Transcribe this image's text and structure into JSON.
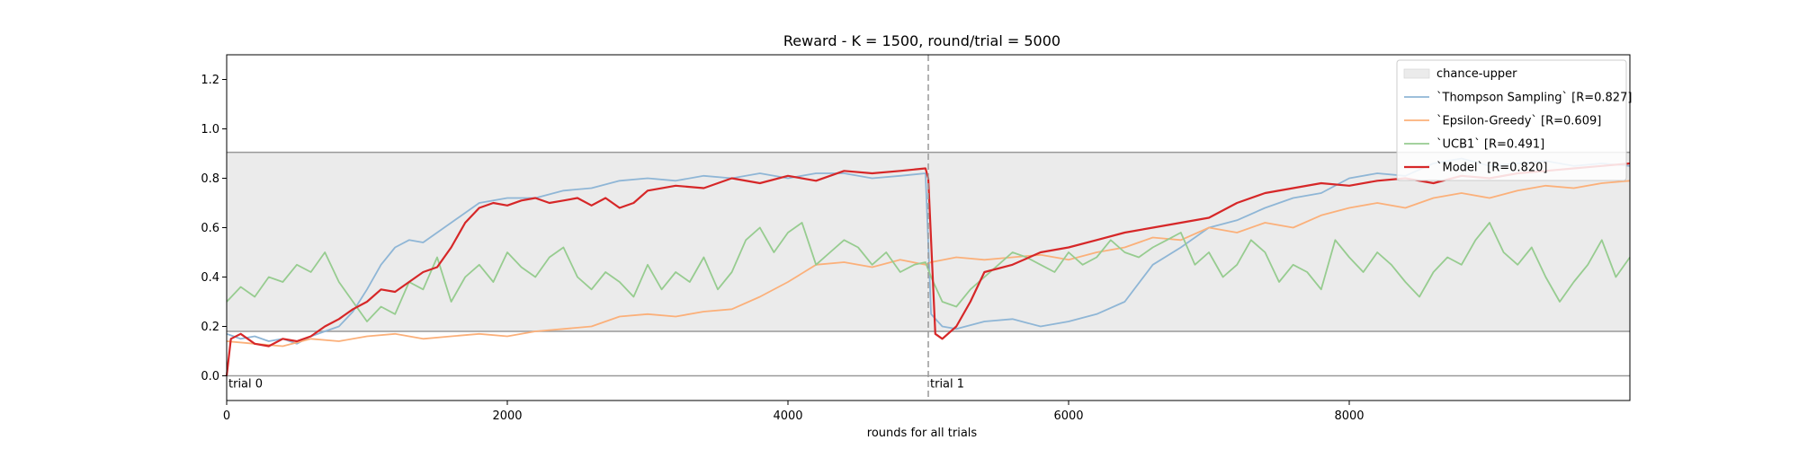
{
  "chart_data": {
    "type": "line",
    "title": "Reward - K = 1500, round/trial = 5000",
    "xlabel": "rounds for all trials",
    "ylabel": "",
    "xlim": [
      0,
      10000
    ],
    "ylim": [
      -0.1,
      1.3
    ],
    "xticks": [
      0,
      2000,
      4000,
      6000,
      8000
    ],
    "yticks": [
      0.0,
      0.2,
      0.4,
      0.6,
      0.8,
      1.0,
      1.2
    ],
    "grid": false,
    "legend_position": "upper right",
    "band": {
      "name": "chance-upper",
      "lower": 0.18,
      "upper": 0.905,
      "color": "#ebebeb"
    },
    "hlines": [
      0.905,
      0.18,
      0.0
    ],
    "trial_boundaries": [
      {
        "x": 0,
        "label": "trial 0"
      },
      {
        "x": 5000,
        "label": "trial 1"
      }
    ],
    "series": [
      {
        "name": "`Thompson Sampling` [R=0.827]",
        "color": "#8fb6d6",
        "x": [
          0,
          100,
          200,
          300,
          400,
          500,
          600,
          700,
          800,
          900,
          1000,
          1100,
          1200,
          1300,
          1400,
          1500,
          1600,
          1700,
          1800,
          2000,
          2200,
          2400,
          2600,
          2800,
          3000,
          3200,
          3400,
          3600,
          3800,
          4000,
          4200,
          4400,
          4600,
          4800,
          4980,
          5020,
          5100,
          5200,
          5400,
          5600,
          5800,
          6000,
          6200,
          6400,
          6600,
          6800,
          7000,
          7200,
          7400,
          7600,
          7800,
          8000,
          8200,
          8400,
          8600,
          8800,
          9000,
          9200,
          9400,
          9600,
          9800,
          10000
        ],
        "values": [
          0.17,
          0.15,
          0.16,
          0.14,
          0.15,
          0.13,
          0.16,
          0.18,
          0.2,
          0.26,
          0.35,
          0.45,
          0.52,
          0.55,
          0.54,
          0.58,
          0.62,
          0.66,
          0.7,
          0.72,
          0.72,
          0.75,
          0.76,
          0.79,
          0.8,
          0.79,
          0.81,
          0.8,
          0.82,
          0.8,
          0.82,
          0.82,
          0.8,
          0.81,
          0.82,
          0.25,
          0.2,
          0.19,
          0.22,
          0.23,
          0.2,
          0.22,
          0.25,
          0.3,
          0.45,
          0.52,
          0.6,
          0.63,
          0.68,
          0.72,
          0.74,
          0.8,
          0.82,
          0.81,
          0.86,
          0.88,
          0.85,
          0.86,
          0.87,
          0.85,
          0.86,
          0.85
        ]
      },
      {
        "name": "`Epsilon-Greedy` [R=0.609]",
        "color": "#fbb07a",
        "x": [
          0,
          200,
          400,
          600,
          800,
          1000,
          1200,
          1400,
          1600,
          1800,
          2000,
          2200,
          2400,
          2600,
          2800,
          3000,
          3200,
          3400,
          3600,
          3800,
          4000,
          4200,
          4400,
          4600,
          4800,
          4980,
          5020,
          5200,
          5400,
          5600,
          5800,
          6000,
          6200,
          6400,
          6600,
          6800,
          7000,
          7200,
          7400,
          7600,
          7800,
          8000,
          8200,
          8400,
          8600,
          8800,
          9000,
          9200,
          9400,
          9600,
          9800,
          10000
        ],
        "values": [
          0.14,
          0.13,
          0.12,
          0.15,
          0.14,
          0.16,
          0.17,
          0.15,
          0.16,
          0.17,
          0.16,
          0.18,
          0.19,
          0.2,
          0.24,
          0.25,
          0.24,
          0.26,
          0.27,
          0.32,
          0.38,
          0.45,
          0.46,
          0.44,
          0.47,
          0.45,
          0.46,
          0.48,
          0.47,
          0.48,
          0.49,
          0.47,
          0.5,
          0.52,
          0.56,
          0.55,
          0.6,
          0.58,
          0.62,
          0.6,
          0.65,
          0.68,
          0.7,
          0.68,
          0.72,
          0.74,
          0.72,
          0.75,
          0.77,
          0.76,
          0.78,
          0.79
        ]
      },
      {
        "name": "`UCB1` [R=0.491]",
        "color": "#97cc90",
        "x": [
          0,
          100,
          200,
          300,
          400,
          500,
          600,
          700,
          800,
          900,
          1000,
          1100,
          1200,
          1300,
          1400,
          1500,
          1600,
          1700,
          1800,
          1900,
          2000,
          2100,
          2200,
          2300,
          2400,
          2500,
          2600,
          2700,
          2800,
          2900,
          3000,
          3100,
          3200,
          3300,
          3400,
          3500,
          3600,
          3700,
          3800,
          3900,
          4000,
          4100,
          4200,
          4300,
          4400,
          4500,
          4600,
          4700,
          4800,
          4900,
          4980,
          5020,
          5100,
          5200,
          5300,
          5400,
          5500,
          5600,
          5700,
          5800,
          5900,
          6000,
          6100,
          6200,
          6300,
          6400,
          6500,
          6600,
          6700,
          6800,
          6900,
          7000,
          7100,
          7200,
          7300,
          7400,
          7500,
          7600,
          7700,
          7800,
          7900,
          8000,
          8100,
          8200,
          8300,
          8400,
          8500,
          8600,
          8700,
          8800,
          8900,
          9000,
          9100,
          9200,
          9300,
          9400,
          9500,
          9600,
          9700,
          9800,
          9900,
          10000
        ],
        "values": [
          0.3,
          0.36,
          0.32,
          0.4,
          0.38,
          0.45,
          0.42,
          0.5,
          0.38,
          0.3,
          0.22,
          0.28,
          0.25,
          0.38,
          0.35,
          0.48,
          0.3,
          0.4,
          0.45,
          0.38,
          0.5,
          0.44,
          0.4,
          0.48,
          0.52,
          0.4,
          0.35,
          0.42,
          0.38,
          0.32,
          0.45,
          0.35,
          0.42,
          0.38,
          0.48,
          0.35,
          0.42,
          0.55,
          0.6,
          0.5,
          0.58,
          0.62,
          0.45,
          0.5,
          0.55,
          0.52,
          0.45,
          0.5,
          0.42,
          0.45,
          0.46,
          0.4,
          0.3,
          0.28,
          0.35,
          0.4,
          0.45,
          0.5,
          0.48,
          0.45,
          0.42,
          0.5,
          0.45,
          0.48,
          0.55,
          0.5,
          0.48,
          0.52,
          0.55,
          0.58,
          0.45,
          0.5,
          0.4,
          0.45,
          0.55,
          0.5,
          0.38,
          0.45,
          0.42,
          0.35,
          0.55,
          0.48,
          0.42,
          0.5,
          0.45,
          0.38,
          0.32,
          0.42,
          0.48,
          0.45,
          0.55,
          0.62,
          0.5,
          0.45,
          0.52,
          0.4,
          0.3,
          0.38,
          0.45,
          0.55,
          0.4,
          0.48
        ]
      },
      {
        "name": "`Model` [R=0.820]",
        "color": "#d62728",
        "x": [
          0,
          30,
          100,
          200,
          300,
          400,
          500,
          600,
          700,
          800,
          900,
          1000,
          1100,
          1200,
          1300,
          1400,
          1500,
          1600,
          1700,
          1800,
          1900,
          2000,
          2100,
          2200,
          2300,
          2400,
          2500,
          2600,
          2700,
          2800,
          2900,
          3000,
          3200,
          3400,
          3600,
          3800,
          4000,
          4200,
          4400,
          4600,
          4800,
          4980,
          5000,
          5050,
          5100,
          5200,
          5300,
          5400,
          5600,
          5800,
          6000,
          6200,
          6400,
          6600,
          6800,
          7000,
          7200,
          7400,
          7600,
          7800,
          8000,
          8200,
          8400,
          8600,
          8800,
          9000,
          9200,
          9400,
          9600,
          9800,
          10000
        ],
        "values": [
          0.0,
          0.15,
          0.17,
          0.13,
          0.12,
          0.15,
          0.14,
          0.16,
          0.2,
          0.23,
          0.27,
          0.3,
          0.35,
          0.34,
          0.38,
          0.42,
          0.44,
          0.52,
          0.62,
          0.68,
          0.7,
          0.69,
          0.71,
          0.72,
          0.7,
          0.71,
          0.72,
          0.69,
          0.72,
          0.68,
          0.7,
          0.75,
          0.77,
          0.76,
          0.8,
          0.78,
          0.81,
          0.79,
          0.83,
          0.82,
          0.83,
          0.84,
          0.8,
          0.17,
          0.15,
          0.2,
          0.3,
          0.42,
          0.45,
          0.5,
          0.52,
          0.55,
          0.58,
          0.6,
          0.62,
          0.64,
          0.7,
          0.74,
          0.76,
          0.78,
          0.77,
          0.79,
          0.8,
          0.78,
          0.81,
          0.8,
          0.82,
          0.83,
          0.84,
          0.85,
          0.86
        ]
      }
    ]
  }
}
